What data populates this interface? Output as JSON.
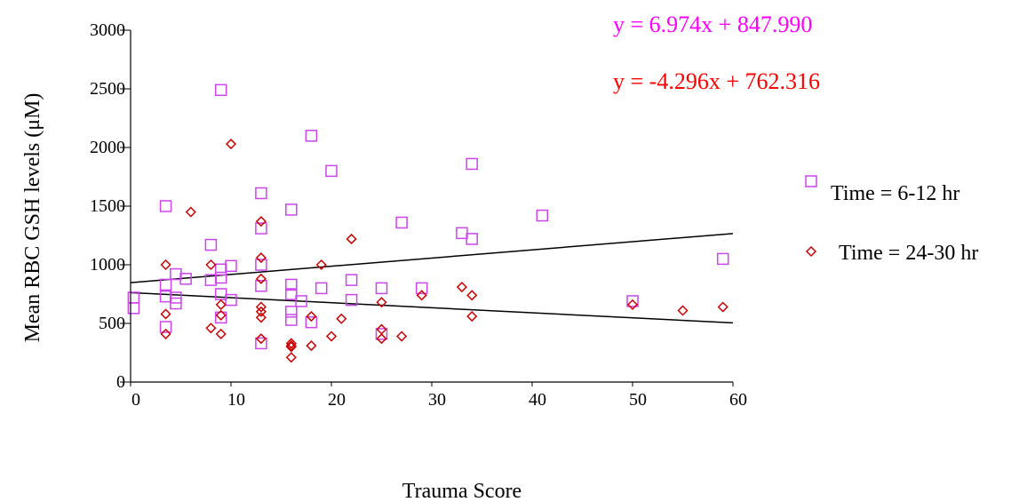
{
  "chart_data": {
    "type": "scatter",
    "xlabel": "Trauma Score",
    "ylabel": "Mean RBC GSH  levels (μM)",
    "xlim": [
      0,
      60
    ],
    "ylim": [
      0,
      3000
    ],
    "xticks": [
      "0",
      "10",
      "20",
      "30",
      "40",
      "50",
      "60"
    ],
    "yticks": [
      "0",
      "500",
      "1000",
      "1500",
      "2000",
      "2500",
      "3000"
    ],
    "grid": false,
    "legend_placement": "right",
    "equations": [
      {
        "text": "y = 6.974x + 847.990",
        "color": "#ff00ff"
      },
      {
        "text": "y =  -4.296x + 762.316",
        "color": "#ff0000"
      }
    ],
    "fit_lines": [
      {
        "slope": 6.974,
        "intercept": 847.99
      },
      {
        "slope": -4.296,
        "intercept": 762.316
      }
    ],
    "series": [
      {
        "name": "Time = 6-12 hr",
        "marker": "square",
        "color": "#cc44ee",
        "points": [
          [
            0.3,
            720
          ],
          [
            0.3,
            630
          ],
          [
            3.5,
            1500
          ],
          [
            3.5,
            830
          ],
          [
            3.5,
            730
          ],
          [
            3.5,
            470
          ],
          [
            4.5,
            920
          ],
          [
            4.5,
            720
          ],
          [
            4.5,
            670
          ],
          [
            5.5,
            880
          ],
          [
            8,
            1170
          ],
          [
            8,
            870
          ],
          [
            9,
            2490
          ],
          [
            9,
            960
          ],
          [
            9,
            890
          ],
          [
            9,
            750
          ],
          [
            9,
            550
          ],
          [
            10,
            990
          ],
          [
            10,
            700
          ],
          [
            13,
            1610
          ],
          [
            13,
            1310
          ],
          [
            13,
            1000
          ],
          [
            13,
            820
          ],
          [
            13,
            330
          ],
          [
            16,
            1470
          ],
          [
            16,
            830
          ],
          [
            16,
            750
          ],
          [
            16,
            600
          ],
          [
            16,
            530
          ],
          [
            17,
            690
          ],
          [
            18,
            2100
          ],
          [
            18,
            510
          ],
          [
            19,
            800
          ],
          [
            20,
            1800
          ],
          [
            22,
            870
          ],
          [
            22,
            700
          ],
          [
            25,
            800
          ],
          [
            25,
            410
          ],
          [
            27,
            1360
          ],
          [
            29,
            800
          ],
          [
            33,
            1270
          ],
          [
            34,
            1860
          ],
          [
            34,
            1220
          ],
          [
            41,
            1420
          ],
          [
            50,
            690
          ],
          [
            59,
            1050
          ]
        ]
      },
      {
        "name": "Time = 24-30 hr",
        "marker": "diamond",
        "color": "#cc0000",
        "points": [
          [
            3.5,
            1000
          ],
          [
            3.5,
            580
          ],
          [
            3.5,
            410
          ],
          [
            6,
            1450
          ],
          [
            8,
            1000
          ],
          [
            8,
            460
          ],
          [
            9,
            660
          ],
          [
            9,
            570
          ],
          [
            9,
            410
          ],
          [
            10,
            2030
          ],
          [
            13,
            1370
          ],
          [
            13,
            1060
          ],
          [
            13,
            880
          ],
          [
            13,
            640
          ],
          [
            13,
            600
          ],
          [
            13,
            550
          ],
          [
            13,
            370
          ],
          [
            16,
            330
          ],
          [
            16,
            310
          ],
          [
            16,
            300
          ],
          [
            16,
            210
          ],
          [
            18,
            560
          ],
          [
            18,
            310
          ],
          [
            19,
            1000
          ],
          [
            20,
            390
          ],
          [
            21,
            540
          ],
          [
            22,
            1220
          ],
          [
            25,
            680
          ],
          [
            25,
            450
          ],
          [
            25,
            370
          ],
          [
            27,
            390
          ],
          [
            29,
            740
          ],
          [
            33,
            810
          ],
          [
            34,
            740
          ],
          [
            34,
            560
          ],
          [
            50,
            660
          ],
          [
            55,
            610
          ],
          [
            59,
            640
          ]
        ]
      }
    ]
  }
}
